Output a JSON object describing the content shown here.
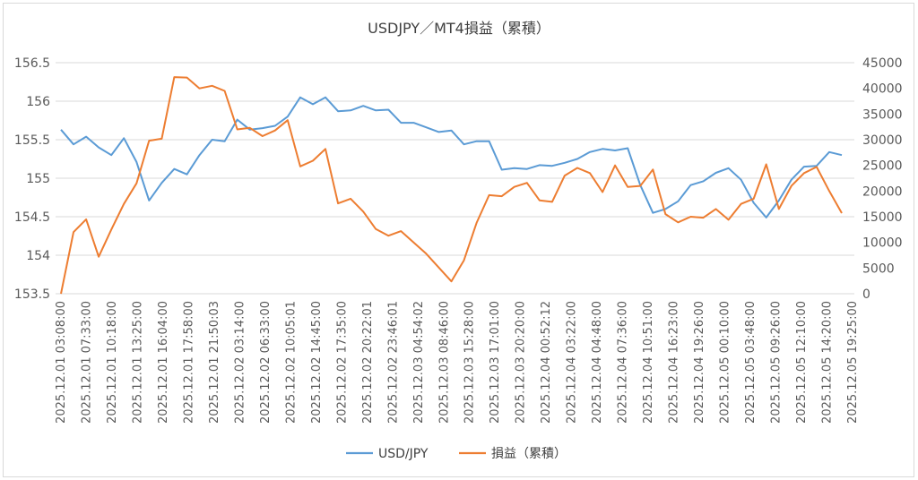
{
  "chart_data": {
    "type": "line",
    "title": "USDJPY／MT4損益（累積）",
    "colors": {
      "usd": "#5B9BD5",
      "pnl": "#ED7D31",
      "grid": "#D9D9D9",
      "text": "#595959"
    },
    "legend_position": "bottom",
    "grid": true,
    "y_left": {
      "min": 153.5,
      "max": 156.5,
      "ticks": [
        "153.5",
        "154",
        "154.5",
        "155",
        "155.5",
        "156",
        "156.5"
      ]
    },
    "y_right": {
      "min": 0,
      "max": 45000,
      "ticks": [
        "0",
        "5000",
        "10000",
        "15000",
        "20000",
        "25000",
        "30000",
        "35000",
        "40000",
        "45000"
      ]
    },
    "x_labels": [
      "2025.12.01 03:08:00",
      "2025.12.01 07:33:00",
      "2025.12.01 10:18:00",
      "2025.12.01 13:25:00",
      "2025.12.01 16:04:00",
      "2025.12.01 17:58:00",
      "2025.12.01 21:50:03",
      "2025.12.02 03:14:00",
      "2025.12.02 06:33:00",
      "2025.12.02 10:05:01",
      "2025.12.02 14:45:00",
      "2025.12.02 17:35:00",
      "2025.12.02 20:22:01",
      "2025.12.02 23:46:01",
      "2025.12.03 04:54:02",
      "2025.12.03 08:46:00",
      "2025.12.03 15:28:00",
      "2025.12.03 17:01:00",
      "2025.12.03 20:20:00",
      "2025.12.04 00:52:12",
      "2025.12.04 03:22:00",
      "2025.12.04 04:48:00",
      "2025.12.04 07:36:00",
      "2025.12.04 10:51:00",
      "2025.12.04 16:23:00",
      "2025.12.04 19:26:00",
      "2025.12.05 00:10:00",
      "2025.12.05 03:48:00",
      "2025.12.05 09:26:00",
      "2025.12.05 12:10:00",
      "2025.12.05 14:20:00",
      "2025.12.05 19:25:00"
    ],
    "series": [
      {
        "name": "USD/JPY",
        "axis": "left",
        "values": [
          155.63,
          155.44,
          155.54,
          155.4,
          155.3,
          155.52,
          155.21,
          154.71,
          154.94,
          155.12,
          155.05,
          155.3,
          155.5,
          155.48,
          155.76,
          155.63,
          155.65,
          155.68,
          155.8,
          156.05,
          155.96,
          156.05,
          155.87,
          155.88,
          155.94,
          155.88,
          155.89,
          155.72,
          155.72,
          155.66,
          155.6,
          155.62,
          155.44,
          155.48,
          155.48,
          155.11,
          155.13,
          155.12,
          155.17,
          155.16,
          155.2,
          155.25,
          155.34,
          155.38,
          155.36,
          155.39,
          154.91,
          154.55,
          154.6,
          154.7,
          154.91,
          154.96,
          155.07,
          155.13,
          154.98,
          154.68,
          154.49,
          154.71,
          154.98,
          155.15,
          155.16,
          155.34,
          155.3
        ]
      },
      {
        "name": "損益（累積）",
        "axis": "right",
        "values": [
          0,
          12000,
          14500,
          7200,
          12500,
          17500,
          21500,
          29800,
          30200,
          42200,
          42100,
          40000,
          40500,
          39500,
          32000,
          32300,
          30700,
          31800,
          33800,
          24800,
          25900,
          28200,
          17600,
          18500,
          16000,
          12600,
          11300,
          12200,
          10000,
          7800,
          5100,
          2400,
          6500,
          13800,
          19200,
          19000,
          20800,
          21600,
          18200,
          17900,
          23000,
          24500,
          23500,
          19800,
          25000,
          20800,
          21000,
          24200,
          15500,
          13900,
          15000,
          14800,
          16500,
          14400,
          17500,
          18500,
          25200,
          16500,
          21000,
          23500,
          24700,
          20000,
          15700
        ]
      }
    ]
  }
}
